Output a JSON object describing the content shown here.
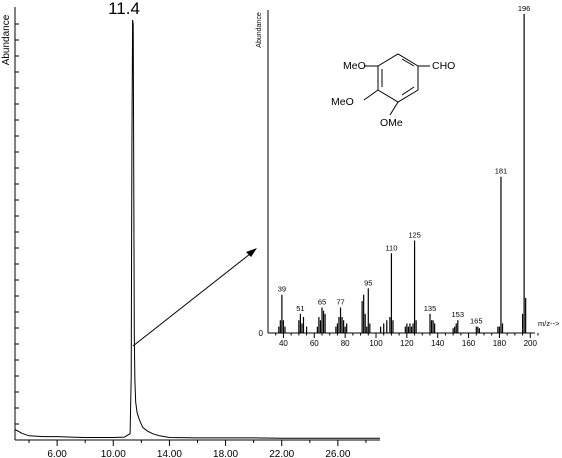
{
  "chart_data": [
    {
      "type": "line",
      "title": "",
      "ylabel": "Abundance",
      "xlabel": "",
      "xlim": [
        3.0,
        29.0
      ],
      "ylim": [
        0,
        100
      ],
      "xticks": [
        "6.00",
        "10.00",
        "14.00",
        "18.00",
        "22.00",
        "26.00"
      ],
      "xtick_values": [
        6,
        10,
        14,
        18,
        22,
        26
      ],
      "peak_label": "11.4",
      "series": [
        {
          "x": [
            3.0,
            3.5,
            4.0,
            5.0,
            6.0,
            7.0,
            8.0,
            9.0,
            10.0,
            10.8,
            11.2,
            11.28,
            11.33,
            11.38,
            11.42,
            11.46,
            11.5,
            11.54,
            11.6,
            11.7,
            11.9,
            12.1,
            12.4,
            12.8,
            13.3,
            14.0,
            16.0,
            18.0,
            20.0,
            22.0,
            24.0,
            26.0,
            28.0,
            29.0
          ],
          "y": [
            2.5,
            1.6,
            1.0,
            0.8,
            0.8,
            0.7,
            0.6,
            0.6,
            0.6,
            0.7,
            1.5,
            15,
            70,
            100,
            99,
            60,
            25,
            14,
            9,
            6.5,
            4.5,
            3.0,
            2.2,
            1.5,
            1.0,
            0.6,
            0.5,
            0.5,
            0.5,
            0.4,
            0.4,
            0.4,
            0.4,
            0.4
          ]
        }
      ]
    },
    {
      "type": "bar",
      "title": "",
      "ylabel": "Abundance",
      "xlabel": "m/z-->",
      "xlim": [
        30,
        205
      ],
      "ylim": [
        0,
        100
      ],
      "xticks": [
        "40",
        "60",
        "80",
        "100",
        "120",
        "140",
        "160",
        "180",
        "200"
      ],
      "xtick_values": [
        40,
        60,
        80,
        100,
        120,
        140,
        160,
        180,
        200
      ],
      "y0_label": "0",
      "series": [
        {
          "mz": [
            37,
            38,
            39,
            40,
            41,
            50,
            51,
            52,
            53,
            55,
            62,
            63,
            64,
            65,
            66,
            67,
            74,
            75,
            76,
            77,
            78,
            79,
            80,
            81,
            91,
            92,
            93,
            94,
            95,
            96,
            103,
            105,
            107,
            109,
            110,
            111,
            119,
            120,
            121,
            122,
            123,
            124,
            125,
            126,
            135,
            136,
            137,
            138,
            150,
            151,
            152,
            153,
            165,
            166,
            167,
            179,
            180,
            181,
            182,
            195,
            196,
            197
          ],
          "intensity": [
            2,
            4,
            12,
            4,
            2,
            4,
            6,
            3,
            5,
            2,
            2,
            5,
            4,
            8,
            7,
            6,
            2,
            3,
            5,
            8,
            5,
            4,
            2,
            3,
            10,
            12,
            6,
            2,
            14,
            3,
            2,
            3,
            4,
            5,
            25,
            4,
            2,
            3,
            2,
            3,
            2,
            3,
            29,
            4,
            6,
            4,
            4,
            3,
            1.5,
            2,
            3,
            4,
            2,
            2,
            1.5,
            2,
            2,
            49,
            3,
            6,
            100,
            11
          ]
        }
      ],
      "peak_labels": [
        {
          "mz": 39,
          "value": 12,
          "label": "39"
        },
        {
          "mz": 51,
          "value": 6,
          "label": "51"
        },
        {
          "mz": 65,
          "value": 8,
          "label": "65"
        },
        {
          "mz": 77,
          "value": 8,
          "label": "77"
        },
        {
          "mz": 95,
          "value": 14,
          "label": "95"
        },
        {
          "mz": 110,
          "value": 25,
          "label": "110"
        },
        {
          "mz": 125,
          "value": 29,
          "label": "125"
        },
        {
          "mz": 135,
          "value": 6,
          "label": "135"
        },
        {
          "mz": 153,
          "value": 4,
          "label": "153"
        },
        {
          "mz": 165,
          "value": 2,
          "label": "165"
        },
        {
          "mz": 181,
          "value": 49,
          "label": "181"
        },
        {
          "mz": 196,
          "value": 100,
          "label": "196"
        }
      ],
      "molecule": {
        "substituents": {
          "meo_top": "MeO",
          "meo_mid": "MeO",
          "ome_bottom": "OMe",
          "cho": "CHO"
        }
      }
    }
  ]
}
